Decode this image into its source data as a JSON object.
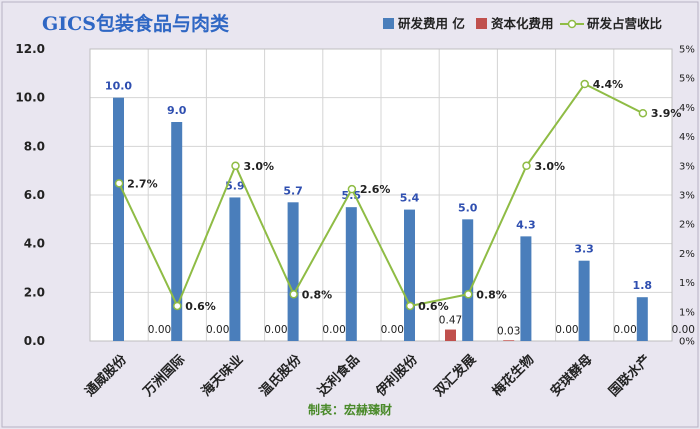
{
  "chart_data": {
    "type": "bar",
    "title": "GICS包装食品与肉类",
    "footer": "制表：宏赫臻财",
    "categories": [
      "通威股份",
      "万洲国际",
      "海天味业",
      "温氏股份",
      "达利食品",
      "伊利股份",
      "双汇发展",
      "梅花生物",
      "安琪酵母",
      "国联水产"
    ],
    "series": [
      {
        "name": "研发费用 亿",
        "axis": "left",
        "type": "bar",
        "color": "#4a7ebb",
        "values": [
          10.0,
          9.0,
          5.9,
          5.7,
          5.5,
          5.4,
          5.0,
          4.3,
          3.3,
          1.8
        ],
        "labels": [
          "10.0",
          "9.0",
          "5.9",
          "5.7",
          "5.5",
          "5.4",
          "5.0",
          "4.3",
          "3.3",
          "1.8"
        ]
      },
      {
        "name": "资本化费用",
        "axis": "left",
        "type": "bar",
        "color": "#c0504d",
        "values": [
          0.0,
          0.0,
          0.0,
          0.0,
          0.0,
          0.47,
          0.03,
          0.0,
          0.0,
          0.0
        ],
        "labels": [
          "0.00",
          "0.00",
          "0.00",
          "0.00",
          "0.00",
          "0.47",
          "0.03",
          "0.00",
          "0.00",
          "0.00"
        ]
      },
      {
        "name": "研发占营收比",
        "axis": "right",
        "type": "line",
        "color": "#8fbc45",
        "values": [
          2.7,
          0.6,
          3.0,
          0.8,
          2.6,
          0.6,
          0.8,
          3.0,
          4.4,
          3.9
        ],
        "labels": [
          "2.7%",
          "0.6%",
          "3.0%",
          "0.8%",
          "2.6%",
          "0.6%",
          "0.8%",
          "3.0%",
          "4.4%",
          "3.9%"
        ]
      }
    ],
    "y_left": {
      "ylim": [
        0,
        12
      ],
      "ticks": [
        "0.0",
        "2.0",
        "4.0",
        "6.0",
        "8.0",
        "10.0",
        "12.0"
      ]
    },
    "y_right": {
      "ylim": [
        0,
        5
      ],
      "ticks": [
        "0%",
        "1%",
        "1%",
        "2%",
        "2%",
        "3%",
        "3%",
        "4%",
        "4%",
        "5%",
        "5%"
      ]
    },
    "grid": true,
    "legend_position": "top-right"
  }
}
